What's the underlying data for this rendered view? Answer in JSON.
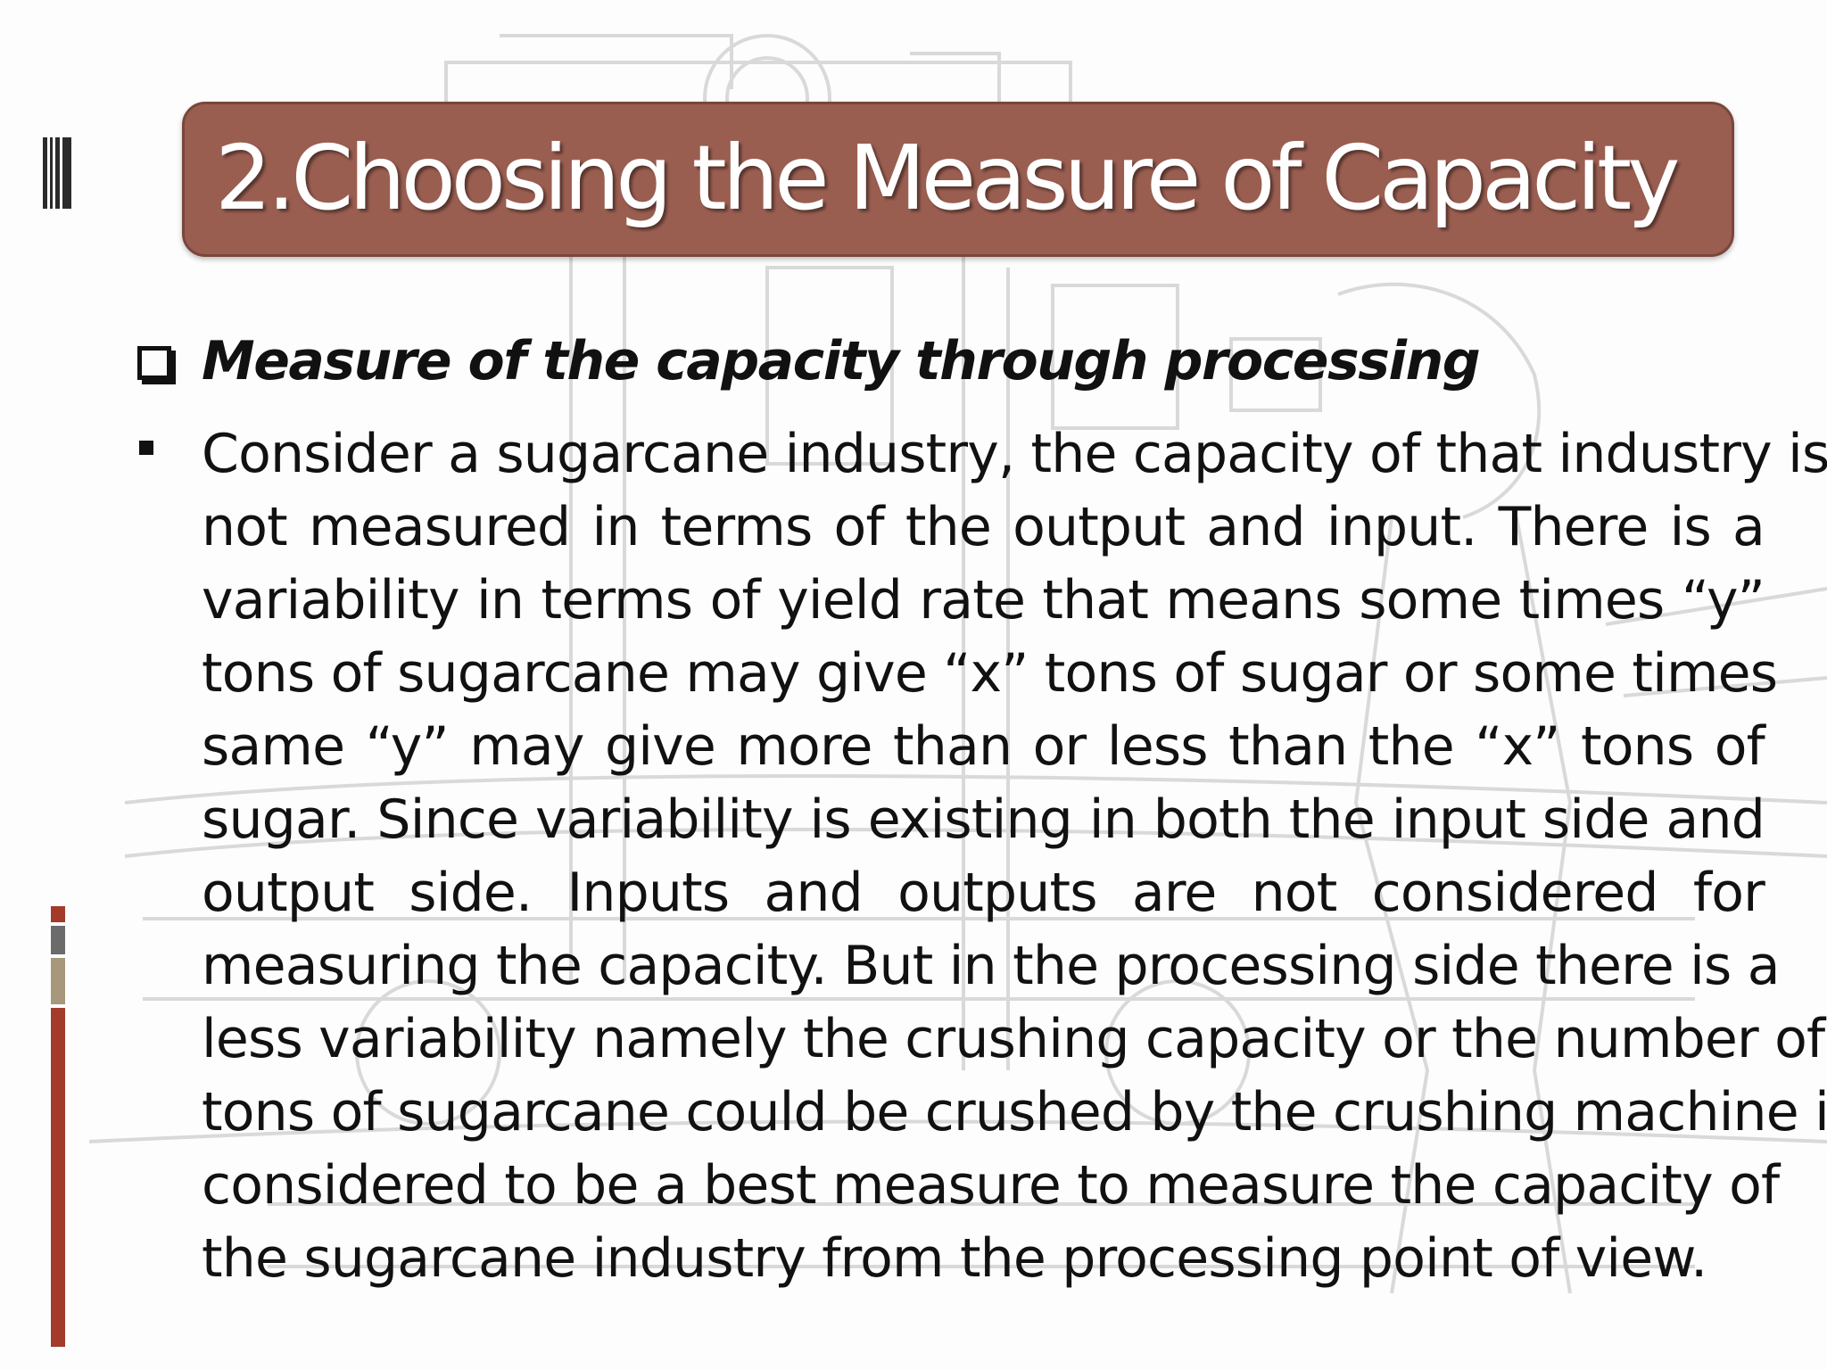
{
  "slide": {
    "title": "2.Choosing the Measure of Capacity",
    "heading": "Measure of the capacity through processing",
    "paragraph_lines": [
      "Consider a sugarcane industry, the capacity of that industry is",
      "not measured in terms of the output and input. There is a",
      "variability in terms of yield rate that means some times “y”",
      "tons of sugarcane may give “x” tons of sugar or some times",
      "same “y” may give more than or less than the “x” tons of",
      "sugar. Since variability is existing in both the input side and",
      "output side. Inputs and outputs are not considered for",
      "measuring the capacity. But in the processing side there is a",
      "less variability namely the crushing capacity or the number of",
      "tons of sugarcane could be crushed by the crushing machine is",
      "considered to be a best measure to measure the capacity of",
      "the sugarcane industry from the processing point of view."
    ]
  },
  "colors": {
    "title_bar": "#9a5e51",
    "title_border": "#7a463b",
    "accent_red": "#a33a2a",
    "accent_gray": "#6b6b6b",
    "accent_tan": "#a8977a"
  },
  "icons": {
    "heading_bullet": "checkbox-icon",
    "paragraph_bullet": "square-bullet-icon"
  }
}
